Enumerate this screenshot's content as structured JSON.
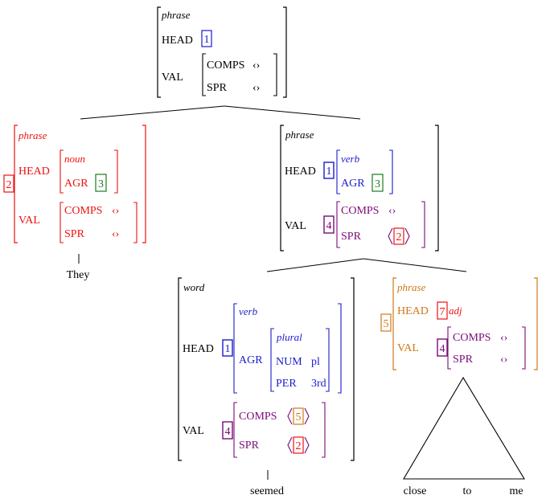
{
  "colors": {
    "black": "#000000",
    "red": "#ee1111",
    "blue": "#1b1bcc",
    "green": "#1a7a1a",
    "purple": "#7a0a7a",
    "orange": "#d07818"
  },
  "root": {
    "type": "phrase",
    "head_feat": "HEAD",
    "head_tag": "1",
    "val_feat": "VAL",
    "comps_feat": "COMPS",
    "comps_val": "‹›",
    "spr_feat": "SPR",
    "spr_val": "‹›"
  },
  "subj": {
    "tag": "2",
    "type": "phrase",
    "head_feat": "HEAD",
    "head_type": "noun",
    "agr_feat": "AGR",
    "agr_tag": "3",
    "val_feat": "VAL",
    "comps_feat": "COMPS",
    "comps_val": "‹›",
    "spr_feat": "SPR",
    "spr_val": "‹›",
    "word": "They"
  },
  "vp": {
    "type": "phrase",
    "head_feat": "HEAD",
    "head_tag": "1",
    "head_type": "verb",
    "agr_feat": "AGR",
    "agr_tag": "3",
    "val_feat": "VAL",
    "val_tag": "4",
    "comps_feat": "COMPS",
    "comps_val": "‹›",
    "spr_feat": "SPR",
    "spr_tag": "2"
  },
  "verb": {
    "type": "word",
    "head_feat": "HEAD",
    "head_tag": "1",
    "head_type": "verb",
    "agr_feat": "AGR",
    "agr_type": "plural",
    "num_feat": "NUM",
    "num_val": "pl",
    "per_feat": "PER",
    "per_val": "3rd",
    "val_feat": "VAL",
    "val_tag": "4",
    "comps_feat": "COMPS",
    "comps_tag": "5",
    "spr_feat": "SPR",
    "spr_tag": "2",
    "word": "seemed"
  },
  "ap": {
    "tag": "5",
    "type": "phrase",
    "head_feat": "HEAD",
    "head_tag": "7",
    "head_type": "adj",
    "val_feat": "VAL",
    "val_tag": "4",
    "comps_feat": "COMPS",
    "comps_val": "‹›",
    "spr_feat": "SPR",
    "spr_val": "‹›",
    "words": [
      "close",
      "to",
      "me"
    ]
  }
}
